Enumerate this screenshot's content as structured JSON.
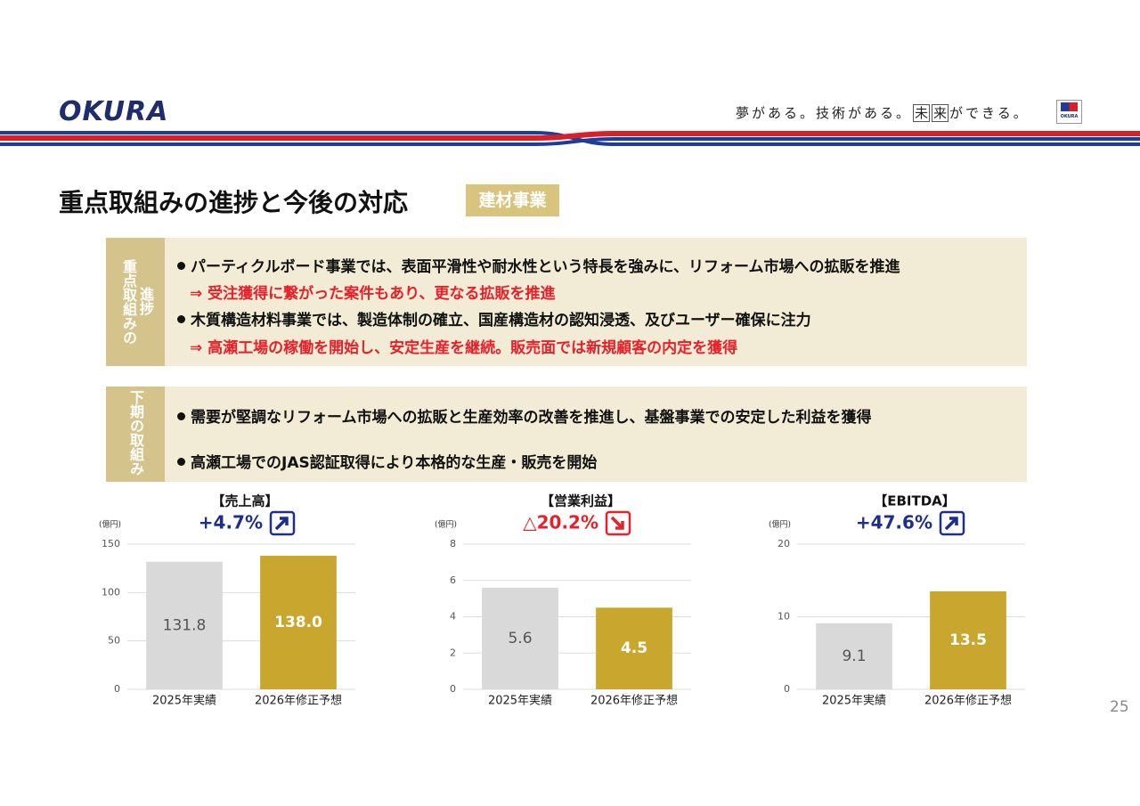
{
  "header": {
    "logo": "OKURA",
    "tagline": [
      "夢がある。技術がある。",
      "未",
      "来",
      "ができる。"
    ],
    "badge": "OKURA"
  },
  "title": "重点取組みの進捗と今後の対応",
  "tag": "建材事業",
  "sections": [
    {
      "label": [
        "重点取組みの",
        "進捗"
      ],
      "items": [
        {
          "text": "パーティクルボード事業では、表面平滑性や耐水性という特長を強みに、リフォーム市場への拡販を推進",
          "note": "⇒ 受注獲得に繋がった案件もあり、更なる拡販を推進"
        },
        {
          "text": "木質構造材料事業では、製造体制の確立、国産構造材の認知浸透、及びユーザー確保に注力",
          "note": "⇒ 高瀬工場の稼働を開始し、安定生産を継続。販売面では新規顧客の内定を獲得"
        }
      ]
    },
    {
      "label": [
        "下期の取組み"
      ],
      "items": [
        {
          "text": "需要が堅調なリフォーム市場への拡販と生産効率の改善を推進し、基盤事業での安定した利益を獲得"
        },
        {
          "text": "高瀬工場でのJAS認証取得により本格的な生産・販売を開始"
        }
      ]
    }
  ],
  "chart_data": [
    {
      "type": "bar",
      "title": "【売上高】",
      "annotation": "+4.7%",
      "trend": "up",
      "annotation_color": "#1d2f8a",
      "y_label": "(億円)",
      "categories": [
        "2025年実績",
        "2026年修正予想"
      ],
      "values": [
        131.8,
        138.0
      ],
      "value_labels": [
        "131.8",
        "138.0"
      ],
      "colors": [
        "#d9d9d9",
        "#c9a72f"
      ],
      "label_colors": [
        "#555555",
        "#ffffff"
      ],
      "ylim": [
        0,
        150
      ],
      "yticks": [
        0,
        50,
        100,
        150
      ],
      "grid": true
    },
    {
      "type": "bar",
      "title": "【営業利益】",
      "annotation": "△20.2%",
      "trend": "down",
      "annotation_color": "#e8202a",
      "y_label": "(億円)",
      "categories": [
        "2025年実績",
        "2026年修正予想"
      ],
      "values": [
        5.6,
        4.5
      ],
      "colors": [
        "#d9d9d9",
        "#c9a72f"
      ],
      "label_colors": [
        "#555555",
        "#ffffff"
      ],
      "ylim": [
        0,
        8
      ],
      "yticks": [
        0,
        2,
        4,
        6,
        8
      ],
      "grid": true
    },
    {
      "type": "bar",
      "title": "【EBITDA】",
      "annotation": "+47.6%",
      "trend": "up",
      "annotation_color": "#1d2f8a",
      "y_label": "(億円)",
      "categories": [
        "2025年実績",
        "2026年修正予想"
      ],
      "values": [
        9.1,
        13.5
      ],
      "colors": [
        "#d9d9d9",
        "#c9a72f"
      ],
      "label_colors": [
        "#555555",
        "#ffffff"
      ],
      "ylim": [
        0,
        20
      ],
      "yticks": [
        0,
        10,
        20
      ],
      "grid": true
    }
  ],
  "page_number": "25"
}
